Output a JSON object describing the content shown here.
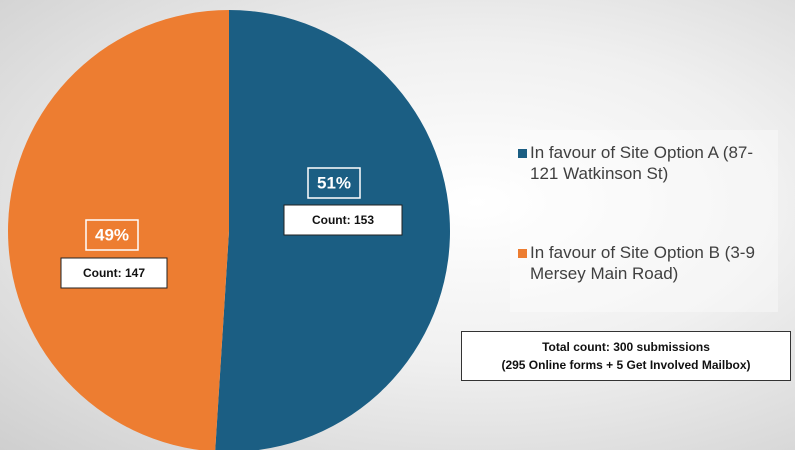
{
  "chart_data": {
    "type": "pie",
    "categories": [
      "In favour of Site Option A (87-121 Watkinson St)",
      "In favour of Site Option B (3-9 Mersey Main Road)"
    ],
    "values": [
      51,
      49
    ],
    "value_labels": [
      "51%",
      "49%"
    ],
    "colors": [
      "#1b5e83",
      "#ed7d31"
    ],
    "annotations": [
      "Count: 153",
      "Count: 147"
    ],
    "note": [
      "Total count: 300 submissions",
      "(295 Online forms + 5 Get Involved Mailbox)"
    ]
  }
}
